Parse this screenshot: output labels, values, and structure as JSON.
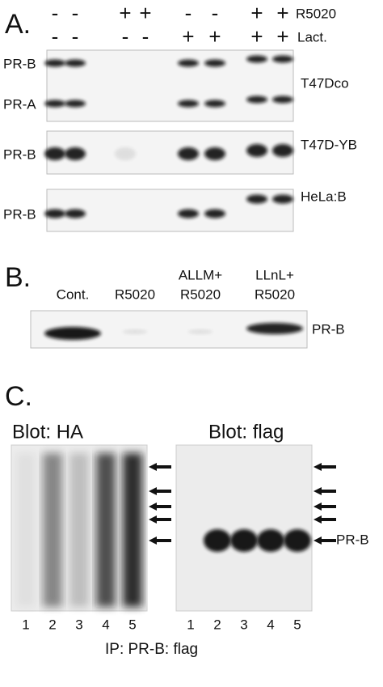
{
  "panel_a": {
    "label": "A.",
    "r5020_signs": [
      "-",
      "-",
      "+",
      "+",
      "-",
      "-",
      "+",
      "+"
    ],
    "r5020_label": "R5020",
    "lact_signs": [
      "-",
      "-",
      "-",
      "-",
      "+",
      "+",
      "+",
      "+"
    ],
    "lact_label": "Lact.",
    "blots": [
      {
        "cell_line": "T47Dco",
        "bands": [
          "PR-B",
          "PR-A"
        ]
      },
      {
        "cell_line": "T47D-YB",
        "bands": [
          "PR-B"
        ]
      },
      {
        "cell_line": "HeLa:B",
        "bands": [
          "PR-B"
        ]
      }
    ]
  },
  "panel_b": {
    "label": "B.",
    "lanes": [
      [
        "Cont."
      ],
      [
        "R5020"
      ],
      [
        "ALLM+",
        "R5020"
      ],
      [
        "LLnL+",
        "R5020"
      ]
    ],
    "band": "PR-B"
  },
  "panel_c": {
    "label": "C.",
    "blots": [
      {
        "title": "Blot: HA",
        "lanes": [
          "1",
          "2",
          "3",
          "4",
          "5"
        ]
      },
      {
        "title": "Blot: flag",
        "lanes": [
          "1",
          "2",
          "3",
          "4",
          "5"
        ]
      }
    ],
    "band": "PR-B",
    "footer": "IP: PR-B: flag"
  }
}
